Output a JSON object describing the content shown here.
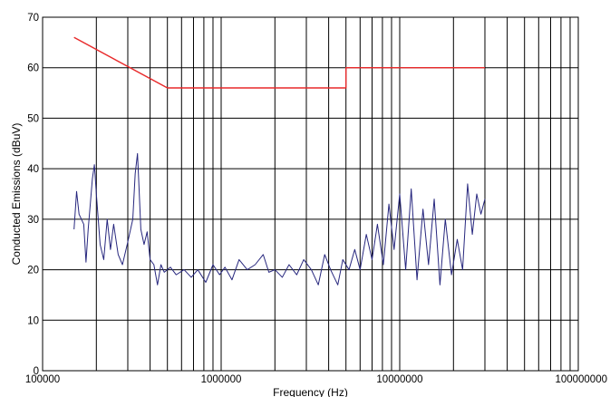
{
  "chart_data": {
    "type": "line",
    "title": "",
    "xlabel": "Frequency (Hz)",
    "ylabel": "Conducted Emissions (dBuV)",
    "x_scale": "log",
    "xlim": [
      100000,
      100000000
    ],
    "ylim": [
      0,
      70
    ],
    "x_ticks": [
      100000,
      1000000,
      10000000,
      100000000
    ],
    "x_tick_labels": [
      "100000",
      "1000000",
      "10000000",
      "100000000"
    ],
    "y_ticks": [
      0,
      10,
      20,
      30,
      40,
      50,
      60,
      70
    ],
    "y_tick_labels": [
      "0",
      "10",
      "20",
      "30",
      "40",
      "50",
      "60",
      "70"
    ],
    "grid": true,
    "legend": "none",
    "series": [
      {
        "color": "#e8292a",
        "style": "limit",
        "points": [
          [
            150000,
            66
          ],
          [
            500000,
            56
          ],
          [
            5000000,
            56
          ],
          [
            5000000,
            60
          ],
          [
            30000000,
            60
          ]
        ]
      },
      {
        "color": "#27277e",
        "style": "measurement",
        "points": [
          [
            150000,
            28
          ],
          [
            155000,
            35.5
          ],
          [
            160000,
            31
          ],
          [
            170000,
            29
          ],
          [
            175000,
            21.5
          ],
          [
            180000,
            28
          ],
          [
            185000,
            33
          ],
          [
            190000,
            38
          ],
          [
            195000,
            40.8
          ],
          [
            200000,
            35
          ],
          [
            210000,
            25
          ],
          [
            220000,
            22
          ],
          [
            230000,
            30
          ],
          [
            240000,
            24
          ],
          [
            250000,
            29
          ],
          [
            265000,
            23
          ],
          [
            280000,
            21
          ],
          [
            300000,
            25.5
          ],
          [
            320000,
            30
          ],
          [
            330000,
            39
          ],
          [
            340000,
            43
          ],
          [
            345000,
            38
          ],
          [
            355000,
            28
          ],
          [
            370000,
            25
          ],
          [
            385000,
            27.5
          ],
          [
            400000,
            22
          ],
          [
            420000,
            21
          ],
          [
            440000,
            17
          ],
          [
            460000,
            21
          ],
          [
            480000,
            19.5
          ],
          [
            520000,
            20.5
          ],
          [
            560000,
            19
          ],
          [
            620000,
            20
          ],
          [
            680000,
            18.5
          ],
          [
            740000,
            20
          ],
          [
            820000,
            17.5
          ],
          [
            900000,
            21
          ],
          [
            980000,
            19
          ],
          [
            1050000,
            20.5
          ],
          [
            1150000,
            18
          ],
          [
            1260000,
            22
          ],
          [
            1400000,
            20
          ],
          [
            1550000,
            21
          ],
          [
            1720000,
            23
          ],
          [
            1850000,
            19.5
          ],
          [
            2000000,
            20
          ],
          [
            2200000,
            18.5
          ],
          [
            2400000,
            21
          ],
          [
            2650000,
            19
          ],
          [
            2900000,
            22
          ],
          [
            3200000,
            20
          ],
          [
            3500000,
            17
          ],
          [
            3800000,
            23
          ],
          [
            4100000,
            20
          ],
          [
            4500000,
            17
          ],
          [
            4800000,
            22
          ],
          [
            5200000,
            20
          ],
          [
            5600000,
            24
          ],
          [
            6000000,
            20
          ],
          [
            6500000,
            27
          ],
          [
            7000000,
            22
          ],
          [
            7500000,
            29
          ],
          [
            8100000,
            21
          ],
          [
            8700000,
            33
          ],
          [
            9300000,
            24
          ],
          [
            10000000,
            35
          ],
          [
            10800000,
            20
          ],
          [
            11600000,
            36
          ],
          [
            12500000,
            18
          ],
          [
            13500000,
            32
          ],
          [
            14500000,
            21
          ],
          [
            15600000,
            34
          ],
          [
            16800000,
            17
          ],
          [
            18000000,
            30
          ],
          [
            19500000,
            19
          ],
          [
            21000000,
            26
          ],
          [
            22500000,
            20
          ],
          [
            24000000,
            37
          ],
          [
            25500000,
            27
          ],
          [
            27000000,
            35
          ],
          [
            28500000,
            31
          ],
          [
            30000000,
            34
          ]
        ]
      }
    ]
  }
}
